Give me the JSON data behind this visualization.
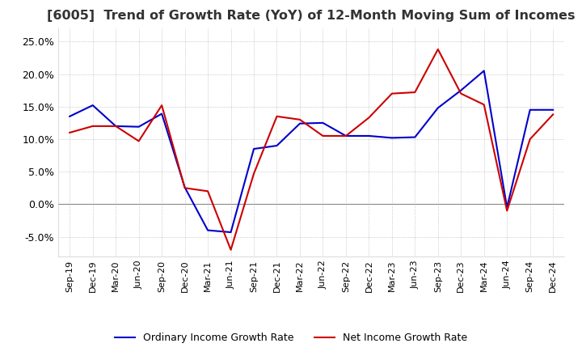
{
  "title": "[6005]  Trend of Growth Rate (YoY) of 12-Month Moving Sum of Incomes",
  "title_fontsize": 11.5,
  "ylim": [
    -0.08,
    0.27
  ],
  "yticks": [
    -0.05,
    0.0,
    0.05,
    0.1,
    0.15,
    0.2,
    0.25
  ],
  "background_color": "#ffffff",
  "grid_color": "#aaaaaa",
  "x_labels": [
    "Sep-19",
    "Dec-19",
    "Mar-20",
    "Jun-20",
    "Sep-20",
    "Dec-20",
    "Mar-21",
    "Jun-21",
    "Sep-21",
    "Dec-21",
    "Mar-22",
    "Jun-22",
    "Sep-22",
    "Dec-22",
    "Mar-23",
    "Jun-23",
    "Sep-23",
    "Dec-23",
    "Mar-24",
    "Jun-24",
    "Sep-24",
    "Dec-24"
  ],
  "ordinary_income": [
    0.135,
    0.152,
    0.12,
    0.119,
    0.139,
    0.026,
    -0.04,
    -0.043,
    0.085,
    0.09,
    0.124,
    0.125,
    0.105,
    0.105,
    0.102,
    0.103,
    0.148,
    0.175,
    0.205,
    -0.005,
    0.145,
    0.145
  ],
  "net_income": [
    0.11,
    0.12,
    0.12,
    0.097,
    0.152,
    0.025,
    0.02,
    -0.07,
    0.047,
    0.135,
    0.13,
    0.105,
    0.105,
    0.133,
    0.17,
    0.172,
    0.238,
    0.17,
    0.153,
    -0.01,
    0.1,
    0.138
  ],
  "ordinary_color": "#0000cc",
  "net_color": "#cc0000",
  "line_width": 1.5,
  "legend_ordinary": "Ordinary Income Growth Rate",
  "legend_net": "Net Income Growth Rate"
}
